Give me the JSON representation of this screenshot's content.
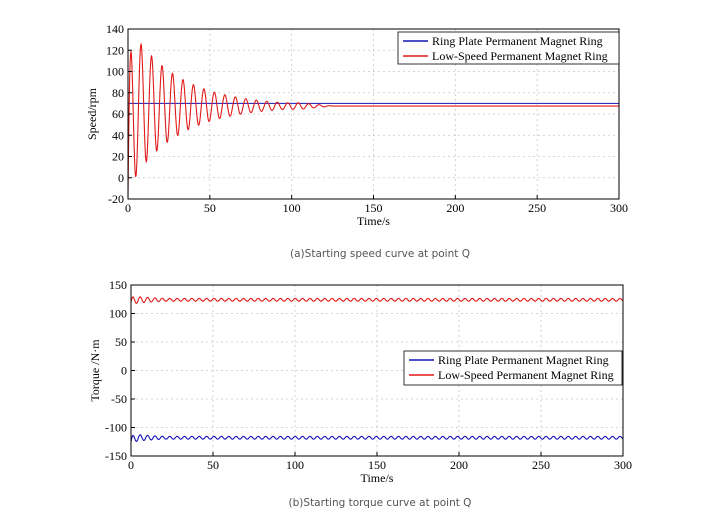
{
  "colors": {
    "ring_plate": "#1414b4",
    "low_speed": "#e01a1a"
  },
  "chart_data": [
    {
      "type": "line",
      "caption": "(a)Starting speed curve at point Q",
      "xlabel": "Time/s",
      "ylabel": "Speed/rpm",
      "xlim": [
        0,
        300
      ],
      "ylim": [
        -20,
        140
      ],
      "xticks": [
        0,
        50,
        100,
        150,
        200,
        250,
        300
      ],
      "yticks": [
        -20,
        0,
        20,
        40,
        60,
        80,
        100,
        120,
        140
      ],
      "grid": true,
      "legend_position": "top-right",
      "series": [
        {
          "name": "Ring Plate Permanent Magnet Ring",
          "color": "#1414b4",
          "steady_value": 70,
          "start_value": 70,
          "amplitude": 0,
          "decay_time": 1,
          "period": 1,
          "settle_time": 0,
          "x": [
            0,
            300
          ],
          "y": [
            70,
            70
          ]
        },
        {
          "name": "Low-Speed Permanent Magnet Ring",
          "color": "#e01a1a",
          "steady_value": 67.5,
          "start_value": -18,
          "amplitude": 76,
          "decay_time": 30,
          "period": 6.4,
          "settle_time": 125,
          "x": [
            0,
            3,
            6,
            10,
            13,
            16,
            20,
            26,
            40,
            62,
            80,
            100,
            120,
            300
          ],
          "y": [
            -18,
            140,
            5,
            120,
            18,
            121,
            20,
            110,
            100,
            84,
            78,
            73,
            68,
            67.5
          ]
        }
      ]
    },
    {
      "type": "line",
      "caption": "(b)Starting torque curve at point Q",
      "xlabel": "Time/s",
      "ylabel": "Torque /N·m",
      "xlim": [
        0,
        300
      ],
      "ylim": [
        -150,
        150
      ],
      "xticks": [
        0,
        50,
        100,
        150,
        200,
        250,
        300
      ],
      "yticks": [
        -150,
        -100,
        -50,
        0,
        50,
        100,
        150
      ],
      "grid": true,
      "legend_position": "center-right",
      "series": [
        {
          "name": "Ring Plate Permanent Magnet Ring",
          "color": "#1414b4",
          "steady_value": -118,
          "start_value": -125,
          "amplitude": 7,
          "decay_time": 20,
          "period": 4.5,
          "settle_time": 300,
          "x": [
            0,
            3,
            50,
            300
          ],
          "y": [
            -125,
            -110,
            -117,
            -118
          ]
        },
        {
          "name": "Low-Speed Permanent Magnet Ring",
          "color": "#e01a1a",
          "steady_value": 124,
          "start_value": 120,
          "amplitude": 7,
          "decay_time": 20,
          "period": 4.5,
          "settle_time": 300,
          "x": [
            0,
            3,
            50,
            300
          ],
          "y": [
            120,
            132,
            125,
            124
          ]
        }
      ]
    }
  ]
}
